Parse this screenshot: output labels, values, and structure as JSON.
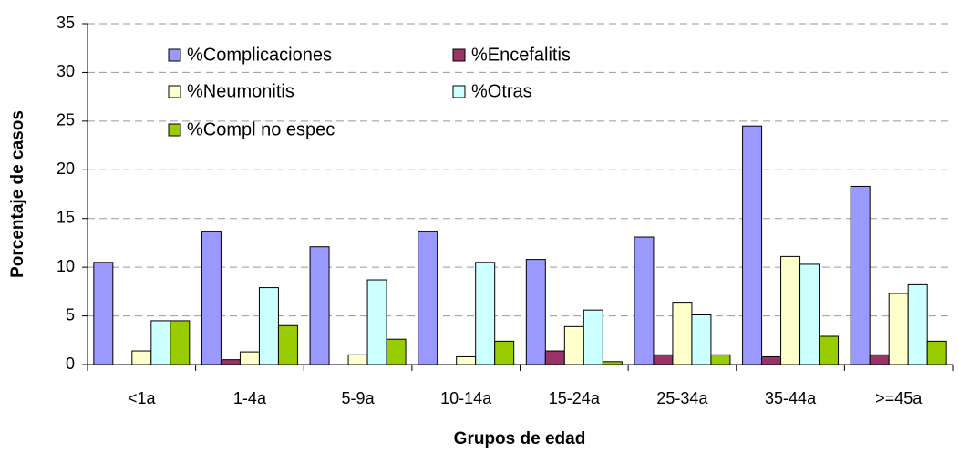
{
  "chart_data": {
    "type": "bar",
    "x_label": "Grupos de edad",
    "y_label": "Porcentaje de casos",
    "categories": [
      "<1a",
      "1-4a",
      "5-9a",
      "10-14a",
      "15-24a",
      "25-34a",
      "35-44a",
      ">=45a"
    ],
    "series": [
      {
        "name": "%Complicaciones",
        "color": "#9999ff",
        "values": [
          10.5,
          13.7,
          12.1,
          13.7,
          10.8,
          13.1,
          24.5,
          18.3
        ]
      },
      {
        "name": "%Encefalitis",
        "color": "#993366",
        "values": [
          0,
          0.5,
          0,
          0,
          1.4,
          1.0,
          0.8,
          1.0
        ]
      },
      {
        "name": "%Neumonitis",
        "color": "#ffffcc",
        "values": [
          1.4,
          1.3,
          1.0,
          0.8,
          3.9,
          6.4,
          11.1,
          7.3
        ]
      },
      {
        "name": "%Otras",
        "color": "#ccffff",
        "values": [
          4.5,
          7.9,
          8.7,
          10.5,
          5.6,
          5.1,
          10.3,
          8.2
        ]
      },
      {
        "name": "%Compl no espec",
        "color": "#99cc00",
        "values": [
          4.5,
          4.0,
          2.6,
          2.4,
          0.3,
          1.0,
          2.9,
          2.4
        ]
      }
    ],
    "ylim": [
      0,
      35
    ],
    "yticks": [
      0,
      5,
      10,
      15,
      20,
      25,
      30,
      35
    ],
    "grid": true
  }
}
